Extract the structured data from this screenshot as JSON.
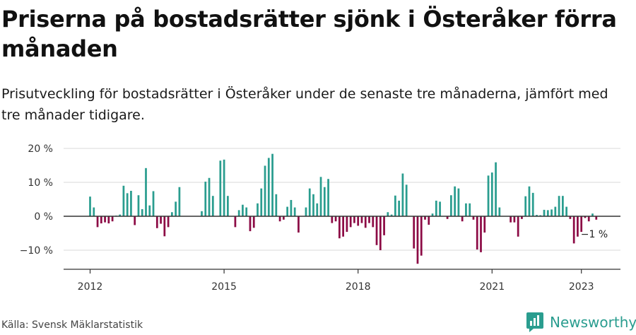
{
  "header": {
    "title": "Priserna på bostadsrätter sjönk i Österåker förra månaden",
    "subtitle": "Prisutveckling för bostadsrätter i Österåker under de senaste tre månaderna, jämfört med tre månader tidigare."
  },
  "footer": {
    "source": "Källa: Svensk Mäklarstatistik",
    "brand": "Newsworthy"
  },
  "colors": {
    "positive": "#2a9d8f",
    "negative": "#8c0b45",
    "grid": "#d9d9d9",
    "axis": "#333333",
    "brand": "#2a9d8f"
  },
  "chart_data": {
    "type": "bar",
    "x_start": "2012-01",
    "x_end": "2023-03",
    "frequency": "monthly",
    "ylim": [
      -15,
      22
    ],
    "yticks": [
      -10,
      0,
      10,
      20
    ],
    "ytick_labels": [
      "−10 %",
      "0 %",
      "10 %",
      "20 %"
    ],
    "xticks": [
      2012,
      2015,
      2018,
      2021,
      2023
    ],
    "xtick_labels": [
      "2012",
      "2015",
      "2018",
      "2021",
      "2023"
    ],
    "grid": true,
    "last_value_label": "−1 %",
    "values": [
      5.8,
      2.6,
      -3.2,
      -2.1,
      -1.8,
      -2.1,
      -1.5,
      0.2,
      0.5,
      9.0,
      6.8,
      7.5,
      -2.6,
      6.2,
      2.1,
      14.2,
      3.2,
      7.4,
      -3.5,
      -2.2,
      -5.9,
      -3.2,
      1.2,
      4.3,
      8.6,
      0,
      0,
      0,
      0,
      0,
      1.5,
      10.2,
      11.3,
      6.0,
      0,
      16.4,
      16.7,
      6.0,
      0,
      -3.2,
      1.8,
      3.4,
      2.6,
      -4.4,
      -3.4,
      3.8,
      8.2,
      14.9,
      17.2,
      18.4,
      6.5,
      -1.5,
      -1.0,
      2.8,
      4.8,
      2.6,
      -4.8,
      0,
      2.6,
      8.2,
      6.5,
      3.8,
      11.6,
      8.6,
      11.0,
      -2.0,
      -1.5,
      -6.5,
      -6.0,
      -4.6,
      -3.2,
      -2.0,
      -2.8,
      -2.0,
      -3.4,
      -2.0,
      -3.2,
      -8.5,
      -10.0,
      -5.6,
      1.2,
      0.5,
      6.1,
      4.6,
      12.6,
      9.3,
      0,
      -9.5,
      -14.0,
      -11.6,
      -1.0,
      -2.5,
      0.8,
      4.6,
      4.3,
      0,
      -0.8,
      6.2,
      8.8,
      8.2,
      -1.5,
      3.8,
      3.8,
      -1.0,
      -9.8,
      -10.6,
      -4.8,
      12.0,
      12.9,
      15.9,
      2.6,
      0,
      0,
      -1.8,
      -1.8,
      -6.0,
      -0.8,
      5.9,
      8.8,
      6.9,
      0.4,
      0.3,
      1.9,
      1.8,
      2.0,
      2.8,
      6.0,
      6.0,
      2.8,
      -0.8,
      -8.0,
      -6.0,
      -4.6,
      -0.5,
      -1.5,
      0.8,
      -1.0
    ]
  }
}
